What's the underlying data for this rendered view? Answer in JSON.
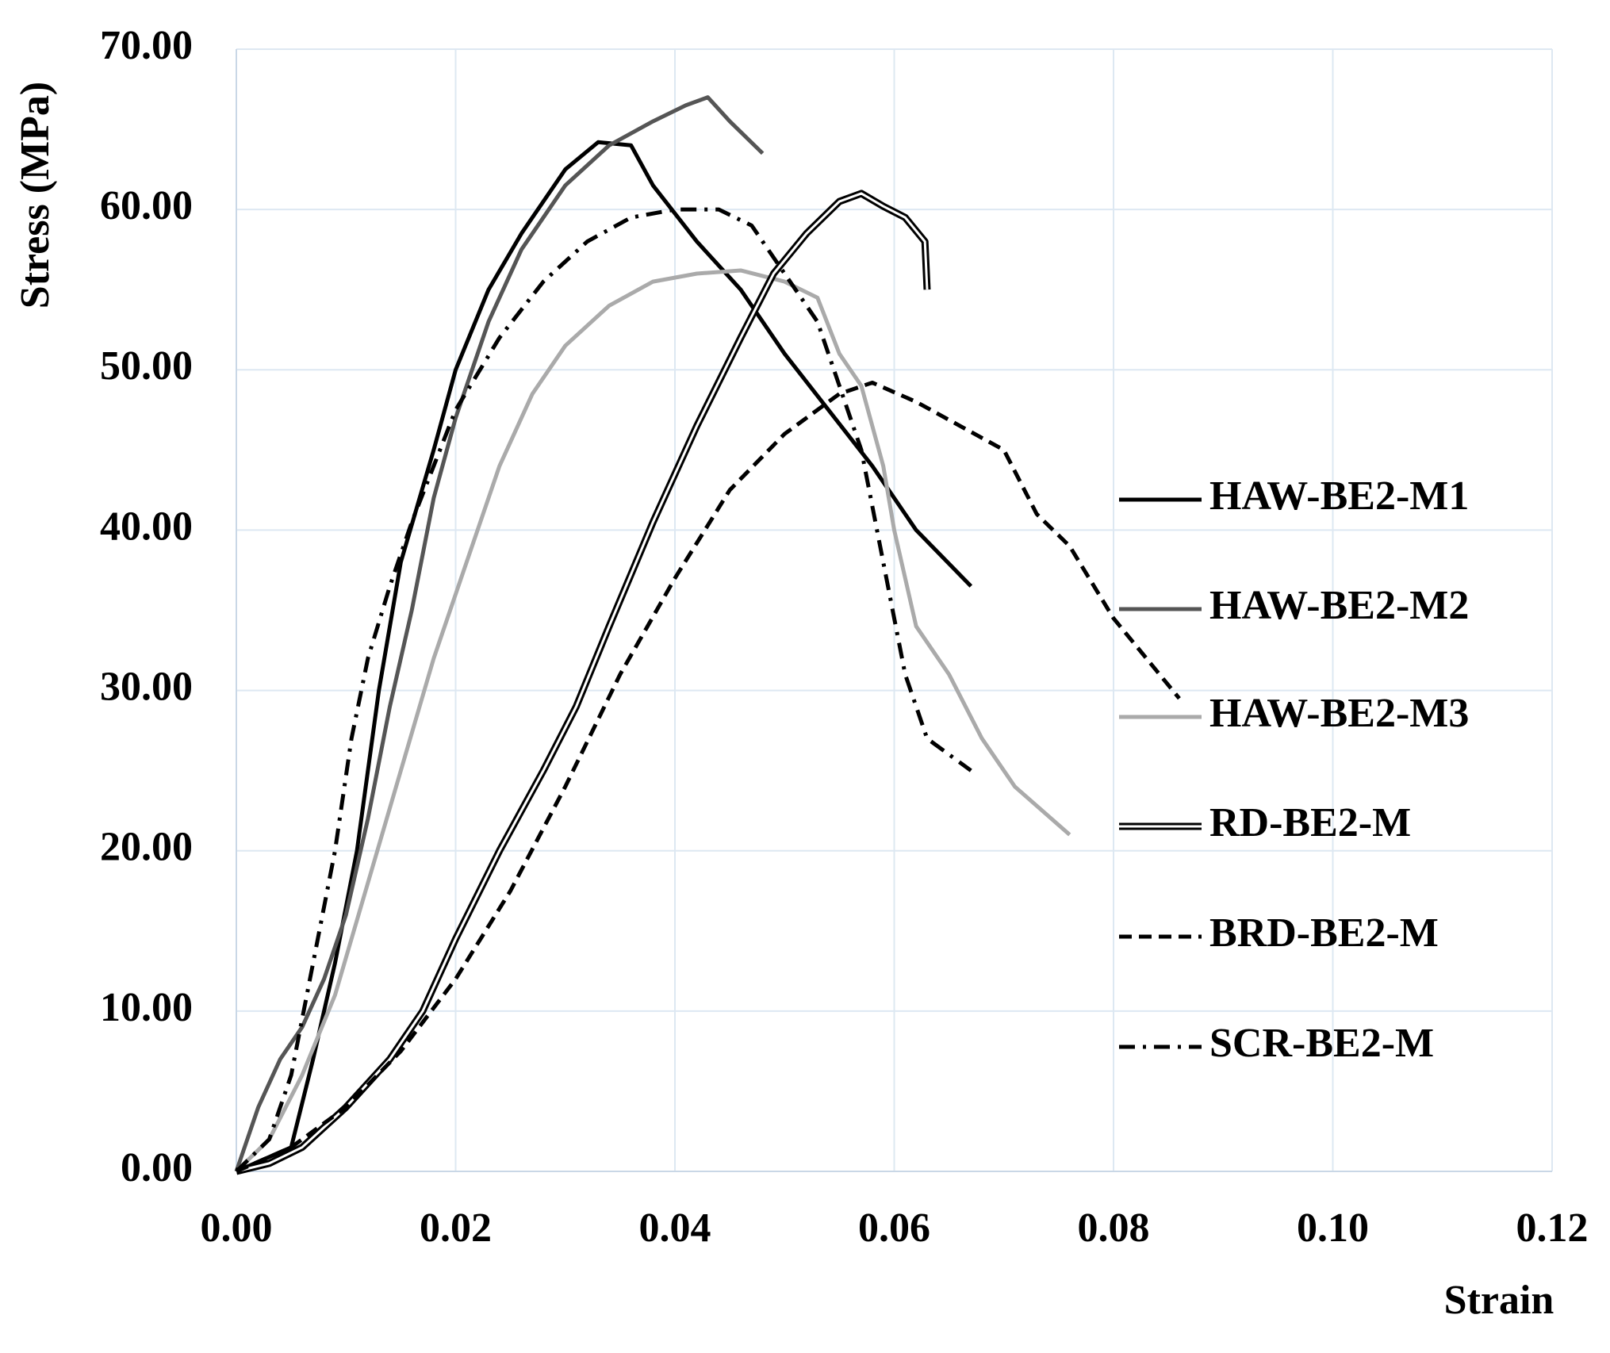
{
  "chart_data": {
    "type": "line",
    "y_label": "Stress (MPa)",
    "x_label": "Strain",
    "xlim": [
      0,
      0.12
    ],
    "ylim": [
      0,
      70
    ],
    "xticks": [
      {
        "value": 0,
        "label": "0.00"
      },
      {
        "value": 0.02,
        "label": "0.02"
      },
      {
        "value": 0.04,
        "label": "0.04"
      },
      {
        "value": 0.06,
        "label": "0.06"
      },
      {
        "value": 0.08,
        "label": "0.08"
      },
      {
        "value": 0.1,
        "label": "0.10"
      },
      {
        "value": 0.12,
        "label": "0.12"
      }
    ],
    "yticks": [
      {
        "value": 0,
        "label": "0.00"
      },
      {
        "value": 10,
        "label": "10.00"
      },
      {
        "value": 20,
        "label": "20.00"
      },
      {
        "value": 30,
        "label": "30.00"
      },
      {
        "value": 40,
        "label": "40.00"
      },
      {
        "value": 50,
        "label": "50.00"
      },
      {
        "value": 60,
        "label": "60.00"
      },
      {
        "value": 70,
        "label": "70.00"
      }
    ],
    "grid": true,
    "legend": "right",
    "series": [
      {
        "name": "HAW-BE2-M1",
        "color": "#000000",
        "style": "solid",
        "x": [
          0,
          0.005,
          0.007,
          0.009,
          0.011,
          0.013,
          0.015,
          0.018,
          0.02,
          0.023,
          0.026,
          0.03,
          0.033,
          0.036,
          0.038,
          0.042,
          0.046,
          0.05,
          0.054,
          0.058,
          0.062,
          0.067
        ],
        "values": [
          0,
          1.5,
          7,
          13,
          20,
          30,
          38,
          45,
          50,
          55,
          58.5,
          62.5,
          64.2,
          64,
          61.5,
          58,
          55,
          51,
          47.5,
          44,
          40,
          36.5
        ]
      },
      {
        "name": "HAW-BE2-M2",
        "color": "#555555",
        "style": "solid",
        "x": [
          0,
          0.002,
          0.004,
          0.006,
          0.008,
          0.01,
          0.012,
          0.014,
          0.016,
          0.018,
          0.02,
          0.023,
          0.026,
          0.03,
          0.034,
          0.038,
          0.041,
          0.043,
          0.045,
          0.048
        ],
        "values": [
          0,
          4,
          7,
          9,
          12,
          16,
          22,
          29,
          35,
          42,
          47,
          53,
          57.5,
          61.5,
          64,
          65.5,
          66.5,
          67,
          65.5,
          63.5
        ]
      },
      {
        "name": "HAW-BE2-M3",
        "color": "#aaaaaa",
        "style": "solid",
        "x": [
          0,
          0.003,
          0.006,
          0.009,
          0.012,
          0.015,
          0.018,
          0.021,
          0.024,
          0.027,
          0.03,
          0.034,
          0.038,
          0.042,
          0.046,
          0.05,
          0.053,
          0.055,
          0.057,
          0.059,
          0.06,
          0.062,
          0.065,
          0.068,
          0.071,
          0.076
        ],
        "values": [
          0,
          2,
          6,
          11,
          18,
          25,
          32,
          38,
          44,
          48.5,
          51.5,
          54,
          55.5,
          56,
          56.2,
          55.5,
          54.5,
          51,
          49,
          44,
          40,
          34,
          31,
          27,
          24,
          21
        ]
      },
      {
        "name": "RD-BE2-M",
        "color": "#000000",
        "style": "double",
        "x": [
          0,
          0.003,
          0.006,
          0.01,
          0.014,
          0.017,
          0.02,
          0.024,
          0.028,
          0.031,
          0.034,
          0.038,
          0.042,
          0.046,
          0.049,
          0.052,
          0.055,
          0.057,
          0.059,
          0.061,
          0.0628,
          0.063
        ],
        "values": [
          0,
          0.5,
          1.5,
          4,
          7,
          10,
          14.5,
          20,
          25,
          29,
          34,
          40.5,
          46.5,
          52,
          56,
          58.5,
          60.5,
          61,
          60.2,
          59.5,
          58,
          55
        ]
      },
      {
        "name": "BRD-BE2-M",
        "color": "#000000",
        "style": "dashed",
        "x": [
          0,
          0.005,
          0.01,
          0.015,
          0.02,
          0.025,
          0.03,
          0.035,
          0.04,
          0.045,
          0.05,
          0.055,
          0.058,
          0.062,
          0.066,
          0.07,
          0.073,
          0.076,
          0.08,
          0.086
        ],
        "values": [
          0,
          1.5,
          4,
          7.5,
          12,
          17.5,
          24,
          31,
          37,
          42.5,
          46,
          48.5,
          49.2,
          48,
          46.5,
          45,
          41,
          39,
          34.5,
          29.5
        ]
      },
      {
        "name": "SCR-BE2-M",
        "color": "#000000",
        "style": "dash-dot",
        "x": [
          0,
          0.003,
          0.005,
          0.007,
          0.009,
          0.0105,
          0.012,
          0.014,
          0.016,
          0.018,
          0.02,
          0.024,
          0.028,
          0.032,
          0.036,
          0.04,
          0.044,
          0.047,
          0.05,
          0.053,
          0.055,
          0.057,
          0.059,
          0.061,
          0.062,
          0.063,
          0.067
        ],
        "values": [
          0,
          2,
          6,
          13,
          20,
          27,
          32,
          36.5,
          40.5,
          44,
          47.5,
          52,
          55.5,
          58,
          59.5,
          60,
          60,
          59,
          56,
          53,
          49,
          45,
          38,
          31,
          29,
          27,
          25
        ]
      }
    ]
  }
}
